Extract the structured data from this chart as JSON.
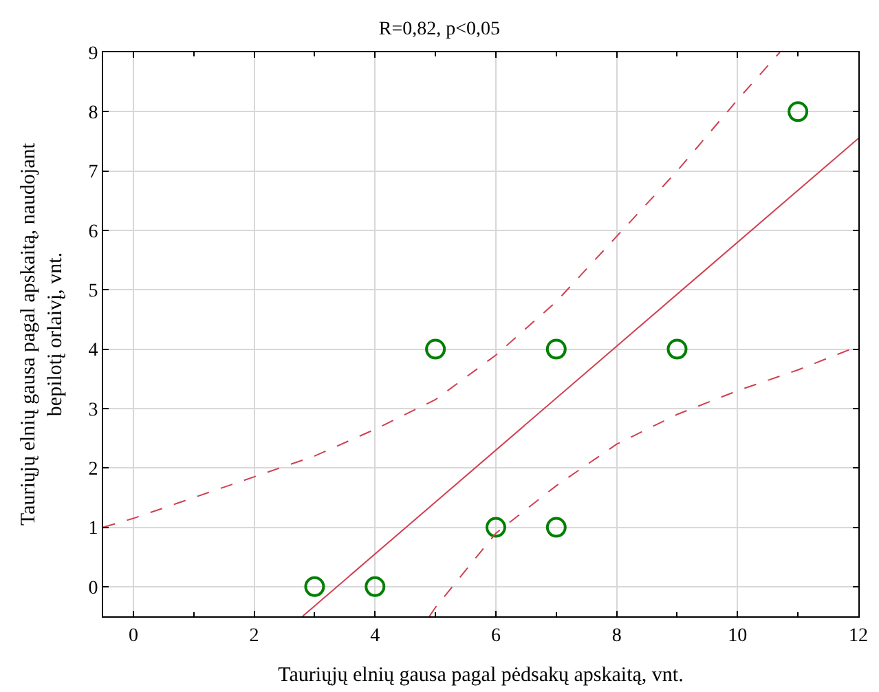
{
  "chart_data": {
    "type": "scatter",
    "title": "R=0,82, p<0,05",
    "xlabel": "Tauriųjų elnių gausa pagal pėdsakų apskaitą, vnt.",
    "ylabel": "Tauriųjų elnių gausa pagal apskaitą, naudojant bepilotį orlaivį, vnt.",
    "xlim": [
      -0.5,
      12
    ],
    "ylim": [
      -0.5,
      9
    ],
    "xticks": [
      0,
      2,
      4,
      6,
      8,
      10,
      12
    ],
    "yticks": [
      0,
      1,
      2,
      3,
      4,
      5,
      6,
      7,
      8,
      9
    ],
    "grid": true,
    "series": [
      {
        "color": "#008000",
        "marker": "circle",
        "x": [
          3,
          4,
          5,
          6,
          7,
          7,
          9,
          11
        ],
        "values": [
          0,
          0,
          4,
          1,
          4,
          1,
          4,
          8
        ]
      },
      {
        "type": "line",
        "color": "#d04050",
        "line_style": "solid",
        "marker": "none",
        "x": [
          2.8,
          12
        ],
        "values": [
          -0.5,
          7.55
        ]
      },
      {
        "type": "line",
        "color": "#d04050",
        "line_style": "dashed",
        "marker": "none",
        "x": [
          -0.5,
          0,
          1,
          2,
          3,
          4,
          5,
          6,
          7,
          8,
          9,
          10,
          10.7
        ],
        "values": [
          1.0,
          1.15,
          1.5,
          1.85,
          2.2,
          2.65,
          3.15,
          3.9,
          4.8,
          5.9,
          7.0,
          8.2,
          9.0
        ]
      },
      {
        "type": "line",
        "color": "#d04050",
        "line_style": "dashed",
        "marker": "none",
        "x": [
          4.9,
          5,
          6,
          7,
          8,
          9,
          10,
          11,
          12
        ],
        "values": [
          -0.5,
          -0.35,
          0.9,
          1.7,
          2.4,
          2.9,
          3.3,
          3.65,
          4.05
        ]
      }
    ]
  }
}
